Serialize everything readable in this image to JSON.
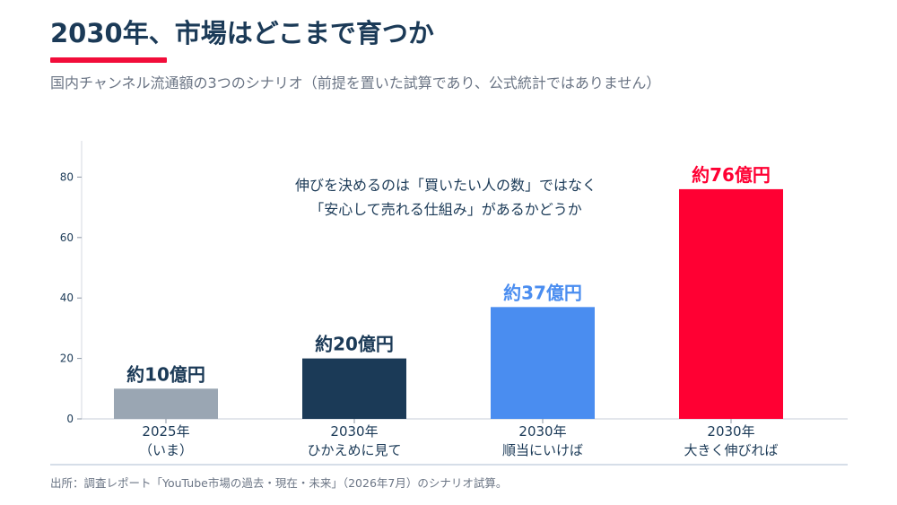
{
  "title": "2030年、市場はどこまで育つか",
  "subtitle": "国内チャンネル流通額の3つのシナリオ（前提を置いた試算であり、公式統計ではありません）",
  "source": "出所：調査レポート「YouTube市場の過去・現在・未来」（2026年7月）のシナリオ試算。",
  "colors": {
    "accent": "#f20d3a",
    "navy": "#1b3a57",
    "gray": "#9aa6b3",
    "blue": "#4a8df0",
    "red": "#ff0033"
  },
  "chart_data": {
    "type": "bar",
    "categories": [
      [
        "2025年",
        "（いま）"
      ],
      [
        "2030年",
        "ひかえめに見て"
      ],
      [
        "2030年",
        "順当にいけば"
      ],
      [
        "2030年",
        "大きく伸びれば"
      ]
    ],
    "values": [
      10,
      20,
      37,
      76
    ],
    "data_labels": [
      "約10億円",
      "約20億円",
      "約37億円",
      "約76億円"
    ],
    "bar_colors": [
      "#9aa6b3",
      "#1b3a57",
      "#4a8df0",
      "#ff0033"
    ],
    "label_colors": [
      "#1b3a57",
      "#1b3a57",
      "#4a8df0",
      "#ff0033"
    ],
    "yticks": [
      0,
      20,
      40,
      60,
      80
    ],
    "ylim": [
      0,
      92
    ],
    "annotation": [
      "伸びを決めるのは「買いたい人の数」ではなく",
      "「安心して売れる仕組み」があるかどうか"
    ]
  }
}
